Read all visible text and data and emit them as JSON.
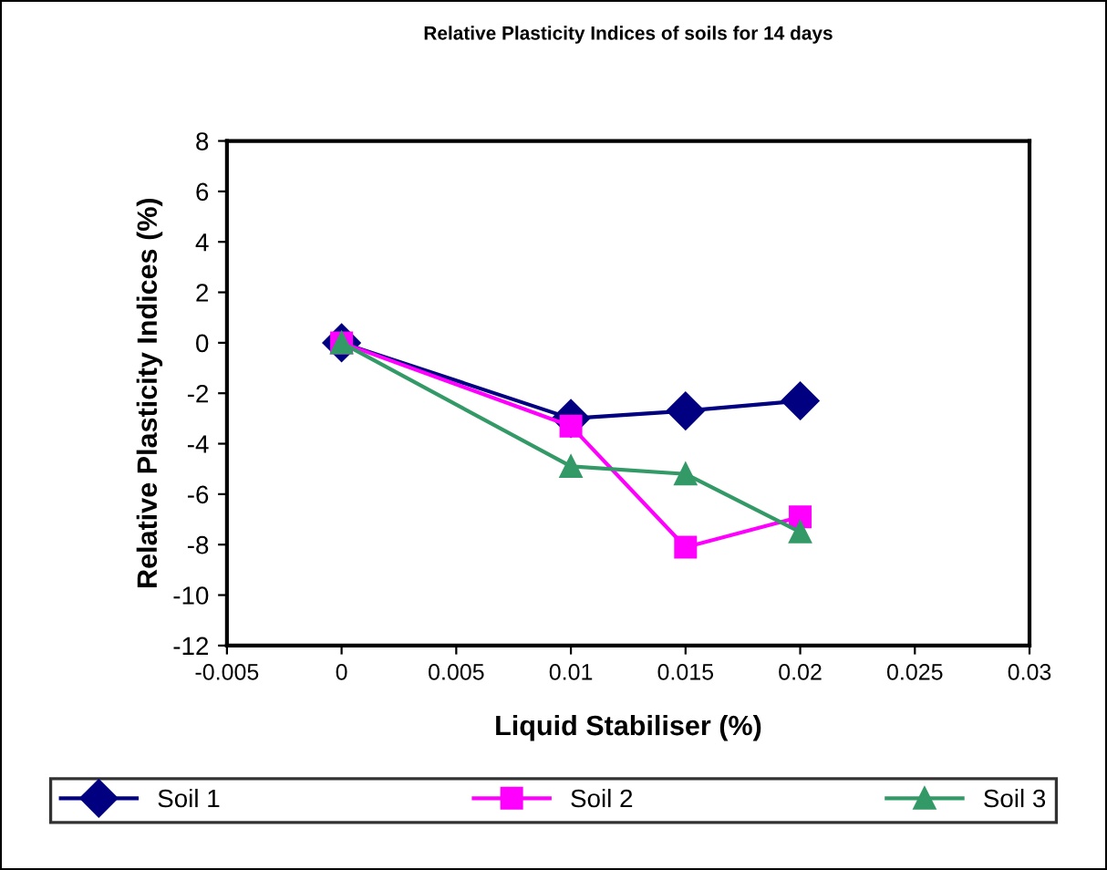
{
  "chart_data": {
    "type": "line",
    "title": "Relative Plasticity Indices of soils for 14 days",
    "xlabel": "Liquid Stabiliser (%)",
    "ylabel": "Relative Plasticity Indices (%)",
    "x": [
      0,
      0.01,
      0.015,
      0.02
    ],
    "series": [
      {
        "name": "Soil 1",
        "color": "#000080",
        "marker": "diamond",
        "values": [
          0,
          -3.0,
          -2.7,
          -2.3
        ]
      },
      {
        "name": "Soil 2",
        "color": "#ff00ff",
        "marker": "square",
        "values": [
          0,
          -3.3,
          -8.1,
          -6.9
        ]
      },
      {
        "name": "Soil 3",
        "color": "#339966",
        "marker": "triangle",
        "values": [
          0,
          -4.9,
          -5.2,
          -7.5
        ]
      }
    ],
    "xlim": [
      -0.005,
      0.03
    ],
    "xticks": [
      -0.005,
      0,
      0.005,
      0.01,
      0.015,
      0.02,
      0.025,
      0.03
    ],
    "ylim": [
      -12,
      8
    ],
    "yticks": [
      -12,
      -10,
      -8,
      -6,
      -4,
      -2,
      0,
      2,
      4,
      6,
      8
    ],
    "grid": false,
    "legend": "bottom"
  }
}
